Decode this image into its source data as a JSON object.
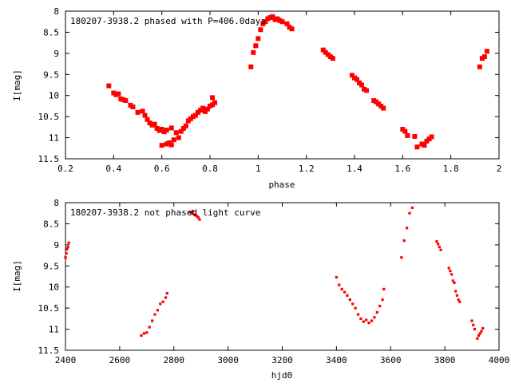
{
  "colors": {
    "points": "#ff0000",
    "frame": "#000000",
    "background": "#ffffff"
  },
  "chart_data": [
    {
      "type": "scatter",
      "title": "180207-3938.2 phased with P=406.0days",
      "xlabel": "phase",
      "ylabel": "I[mag]",
      "xlim": [
        0.2,
        2.0
      ],
      "ylim": [
        11.5,
        8.0
      ],
      "y_inverted": true,
      "grid": false,
      "legend": "none",
      "x_ticks": [
        "0.2",
        "0.4",
        "0.6",
        "0.8",
        "1",
        "1.2",
        "1.4",
        "1.6",
        "1.8",
        "2"
      ],
      "x_tick_values": [
        0.2,
        0.4,
        0.6,
        0.8,
        1.0,
        1.2,
        1.4,
        1.6,
        1.8,
        2.0
      ],
      "y_ticks": [
        "8",
        "8.5",
        "9",
        "9.5",
        "10",
        "10.5",
        "11",
        "11.5"
      ],
      "y_tick_values": [
        8,
        8.5,
        9,
        9.5,
        10,
        10.5,
        11,
        11.5
      ],
      "x": [
        0.38,
        0.4,
        0.41,
        0.42,
        0.43,
        0.44,
        0.45,
        0.47,
        0.48,
        0.5,
        0.52,
        0.53,
        0.54,
        0.55,
        0.56,
        0.57,
        0.58,
        0.59,
        0.6,
        0.6,
        0.61,
        0.62,
        0.62,
        0.63,
        0.64,
        0.64,
        0.65,
        0.66,
        0.67,
        0.68,
        0.69,
        0.7,
        0.71,
        0.72,
        0.73,
        0.74,
        0.75,
        0.76,
        0.77,
        0.78,
        0.79,
        0.8,
        0.81,
        0.81,
        0.82,
        0.97,
        0.98,
        0.99,
        1.0,
        1.01,
        1.02,
        1.03,
        1.04,
        1.05,
        1.06,
        1.07,
        1.08,
        1.09,
        1.1,
        1.12,
        1.13,
        1.14,
        1.27,
        1.28,
        1.29,
        1.3,
        1.31,
        1.39,
        1.4,
        1.41,
        1.42,
        1.43,
        1.44,
        1.45,
        1.48,
        1.49,
        1.5,
        1.51,
        1.52,
        1.6,
        1.61,
        1.62,
        1.65,
        1.66,
        1.68,
        1.69,
        1.7,
        1.71,
        1.72,
        1.92,
        1.93,
        1.94,
        1.95
      ],
      "y": [
        9.77,
        9.94,
        9.98,
        9.96,
        10.08,
        10.1,
        10.12,
        10.23,
        10.27,
        10.4,
        10.37,
        10.47,
        10.57,
        10.65,
        10.7,
        10.68,
        10.78,
        10.83,
        10.8,
        11.18,
        10.86,
        11.15,
        10.82,
        11.12,
        11.17,
        10.77,
        11.05,
        10.88,
        11.0,
        10.85,
        10.78,
        10.72,
        10.6,
        10.55,
        10.5,
        10.47,
        10.4,
        10.35,
        10.3,
        10.38,
        10.32,
        10.25,
        10.05,
        10.22,
        10.17,
        9.32,
        8.98,
        8.82,
        8.65,
        8.44,
        8.3,
        8.25,
        8.18,
        8.15,
        8.13,
        8.2,
        8.18,
        8.22,
        8.25,
        8.3,
        8.38,
        8.42,
        8.92,
        8.98,
        9.03,
        9.08,
        9.12,
        9.52,
        9.58,
        9.62,
        9.7,
        9.75,
        9.85,
        9.88,
        10.12,
        10.15,
        10.2,
        10.25,
        10.3,
        10.8,
        10.85,
        10.95,
        10.97,
        11.22,
        11.15,
        11.18,
        11.08,
        11.03,
        10.98,
        9.32,
        9.12,
        9.08,
        8.95
      ]
    },
    {
      "type": "scatter",
      "title": "180207-3938.2 not phased light curve",
      "xlabel": "hjd0",
      "ylabel": "I[mag]",
      "xlim": [
        2400,
        4000
      ],
      "ylim": [
        11.5,
        8.0
      ],
      "y_inverted": true,
      "grid": false,
      "legend": "none",
      "x_ticks": [
        "2400",
        "2600",
        "2800",
        "3000",
        "3200",
        "3400",
        "3600",
        "3800",
        "4000"
      ],
      "x_tick_values": [
        2400,
        2600,
        2800,
        3000,
        3200,
        3400,
        3600,
        3800,
        4000
      ],
      "y_ticks": [
        "8",
        "8.5",
        "9",
        "9.5",
        "10",
        "10.5",
        "11",
        "11.5"
      ],
      "y_tick_values": [
        8,
        8.5,
        9,
        9.5,
        10,
        10.5,
        11,
        11.5
      ],
      "x": [
        2400,
        2403,
        2406,
        2409,
        2412,
        2680,
        2690,
        2700,
        2710,
        2720,
        2730,
        2740,
        2750,
        2760,
        2770,
        2775,
        2860,
        2865,
        2870,
        2875,
        2880,
        2885,
        2890,
        2895,
        3400,
        3410,
        3420,
        3430,
        3440,
        3450,
        3460,
        3470,
        3480,
        3490,
        3500,
        3510,
        3520,
        3530,
        3540,
        3550,
        3560,
        3570,
        3575,
        3640,
        3650,
        3660,
        3670,
        3680,
        3770,
        3775,
        3780,
        3785,
        3815,
        3820,
        3825,
        3830,
        3835,
        3840,
        3845,
        3850,
        3855,
        3900,
        3905,
        3910,
        3920,
        3925,
        3930,
        3935,
        3940
      ],
      "y": [
        9.3,
        9.2,
        9.1,
        9.05,
        8.95,
        11.15,
        11.1,
        11.08,
        10.95,
        10.8,
        10.65,
        10.55,
        10.4,
        10.35,
        10.25,
        10.15,
        8.22,
        8.25,
        8.2,
        8.28,
        8.3,
        8.32,
        8.35,
        8.4,
        9.77,
        9.95,
        10.05,
        10.12,
        10.2,
        10.3,
        10.4,
        10.5,
        10.65,
        10.75,
        10.82,
        10.78,
        10.85,
        10.8,
        10.72,
        10.6,
        10.45,
        10.3,
        10.05,
        9.3,
        8.9,
        8.6,
        8.25,
        8.12,
        8.92,
        8.98,
        9.05,
        9.12,
        9.55,
        9.62,
        9.7,
        9.85,
        9.9,
        10.1,
        10.2,
        10.3,
        10.35,
        10.8,
        10.9,
        11.0,
        11.22,
        11.15,
        11.1,
        11.05,
        10.98
      ]
    }
  ]
}
